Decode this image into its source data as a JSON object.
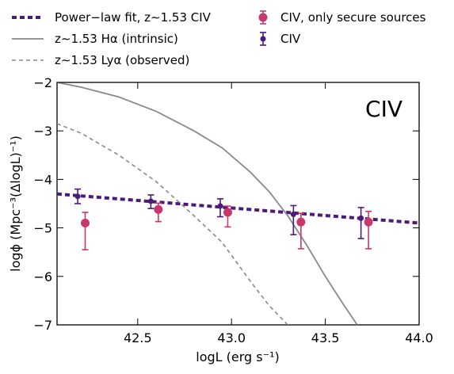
{
  "chart_data": {
    "type": "scatter",
    "panel_label": "CIV",
    "xlabel": "logL (erg s⁻¹)",
    "ylabel": "logϕ (Mpc⁻³(ΔlogL)⁻¹)",
    "xlim": [
      42.07,
      44.0
    ],
    "ylim": [
      -7,
      -2
    ],
    "xticks": [
      42.5,
      43.0,
      43.5,
      44.0
    ],
    "xtick_labels": [
      "42.5",
      "43.0",
      "43.5",
      "44.0"
    ],
    "yticks": [
      -2,
      -3,
      -4,
      -5,
      -6,
      -7
    ],
    "ytick_labels": [
      "−2",
      "−3",
      "−4",
      "−5",
      "−6",
      "−7"
    ],
    "grid": false,
    "legend_placement": "top, outside plot",
    "series": [
      {
        "name": "Power−law fit, z∼1.53 CIV",
        "kind": "line",
        "style": "dotted-thick",
        "color": "#4b1a7a",
        "x": [
          42.07,
          44.0
        ],
        "y": [
          -4.3,
          -4.9
        ]
      },
      {
        "name": "z∼1.53 Hα (intrinsic)",
        "kind": "line",
        "style": "solid",
        "color": "#8a8a8a",
        "x": [
          42.07,
          42.2,
          42.4,
          42.6,
          42.8,
          42.95,
          43.1,
          43.2,
          43.3,
          43.4,
          43.5,
          43.6,
          43.67
        ],
        "y": [
          -2.0,
          -2.1,
          -2.3,
          -2.6,
          -3.0,
          -3.35,
          -3.85,
          -4.25,
          -4.75,
          -5.35,
          -6.0,
          -6.6,
          -7.0
        ]
      },
      {
        "name": "z∼1.53 Lyα (observed)",
        "kind": "line",
        "style": "dashed",
        "color": "#8a8a8a",
        "x": [
          42.07,
          42.2,
          42.4,
          42.6,
          42.8,
          42.95,
          43.1,
          43.2,
          43.3,
          43.32
        ],
        "y": [
          -2.85,
          -3.05,
          -3.5,
          -4.05,
          -4.75,
          -5.3,
          -6.1,
          -6.6,
          -7.0,
          -7.0
        ]
      },
      {
        "name": "CIV, only secure sources",
        "kind": "errorbar",
        "color": "#c8376e",
        "x": [
          42.22,
          42.61,
          42.98,
          43.37,
          43.73
        ],
        "y": [
          -4.9,
          -4.62,
          -4.68,
          -4.88,
          -4.88
        ],
        "yerr_low": [
          0.55,
          0.25,
          0.3,
          0.55,
          0.55
        ],
        "yerr_high": [
          0.22,
          0.13,
          0.13,
          0.18,
          0.22
        ]
      },
      {
        "name": "CIV",
        "kind": "errorbar",
        "color": "#4b1a7a",
        "x": [
          42.18,
          42.57,
          42.94,
          43.33,
          43.69
        ],
        "y": [
          -4.35,
          -4.45,
          -4.55,
          -4.72,
          -4.8
        ],
        "yerr_low": [
          0.15,
          0.15,
          0.22,
          0.42,
          0.42
        ],
        "yerr_high": [
          0.15,
          0.13,
          0.15,
          0.18,
          0.22
        ]
      }
    ]
  }
}
